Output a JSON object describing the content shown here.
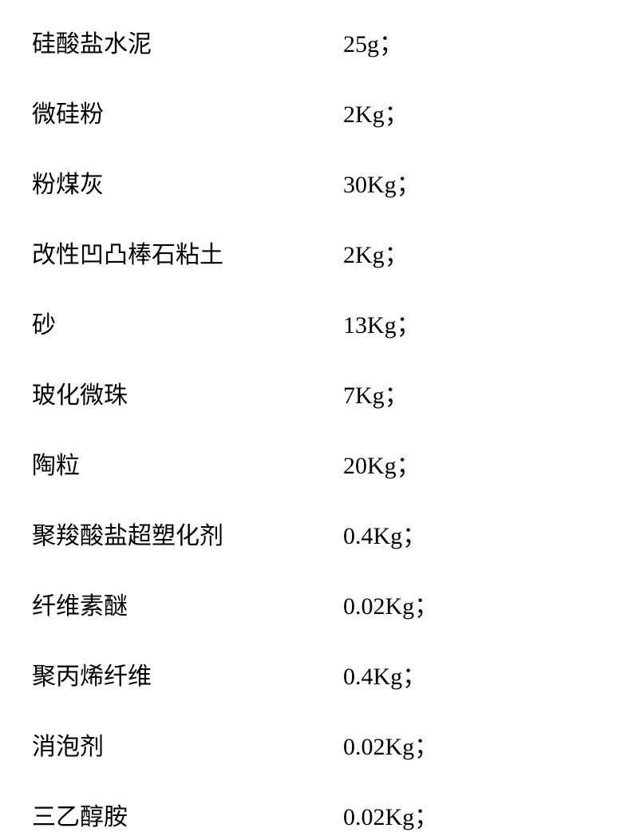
{
  "table": {
    "font_size": 30,
    "text_color": "#000000",
    "background_color": "#ffffff",
    "label_width": 390,
    "row_spacing": 44,
    "rows": [
      {
        "label": "硅酸盐水泥",
        "value": "25g；"
      },
      {
        "label": "微硅粉",
        "value": "2Kg；"
      },
      {
        "label": "粉煤灰",
        "value": "30Kg；"
      },
      {
        "label": "改性凹凸棒石粘土",
        "value": "2Kg；"
      },
      {
        "label": "砂",
        "value": "13Kg；"
      },
      {
        "label": "玻化微珠",
        "value": "7Kg；"
      },
      {
        "label": "陶粒",
        "value": "20Kg；"
      },
      {
        "label": "聚羧酸盐超塑化剂",
        "value": "0.4Kg；"
      },
      {
        "label": "纤维素醚",
        "value": "0.02Kg；"
      },
      {
        "label": "聚丙烯纤维",
        "value": "0.4Kg；"
      },
      {
        "label": "消泡剂",
        "value": "0.02Kg；"
      },
      {
        "label": "三乙醇胺",
        "value": "0.02Kg；"
      }
    ]
  }
}
